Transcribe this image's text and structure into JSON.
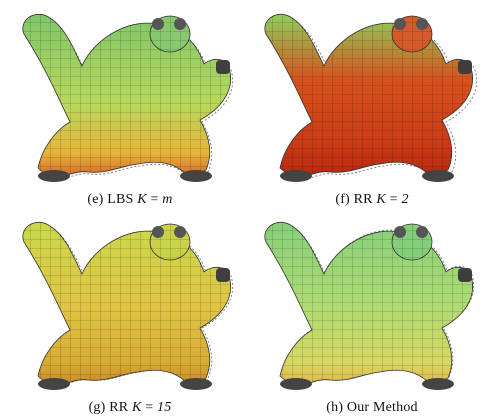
{
  "panels": [
    {
      "id": "e",
      "label": "(e)",
      "method": "LBS",
      "param_lhs": "K",
      "eq": " = ",
      "param_rhs": "m",
      "colors": {
        "top": "#7fc66a",
        "mid": "#b9d85c",
        "low": "#e7b43a",
        "accent": "#d2642a"
      }
    },
    {
      "id": "f",
      "label": "(f)",
      "method": "RR",
      "param_lhs": "K",
      "eq": " = ",
      "param_rhs": "2",
      "colors": {
        "top": "#8fcf5b",
        "mid": "#d6521e",
        "low": "#c93a15",
        "accent": "#b72710"
      }
    },
    {
      "id": "g",
      "label": "(g)",
      "method": "RR",
      "param_lhs": "K",
      "eq": " = ",
      "param_rhs": "15",
      "colors": {
        "top": "#c9d94a",
        "mid": "#e0c544",
        "low": "#d8ad35",
        "accent": "#c88a2a"
      }
    },
    {
      "id": "h",
      "label": "(h)",
      "method": "Our Method",
      "param_lhs": "",
      "eq": "",
      "param_rhs": "",
      "colors": {
        "top": "#86cf7a",
        "mid": "#aedb73",
        "low": "#d6d863",
        "accent": "#e4b64b"
      }
    }
  ]
}
